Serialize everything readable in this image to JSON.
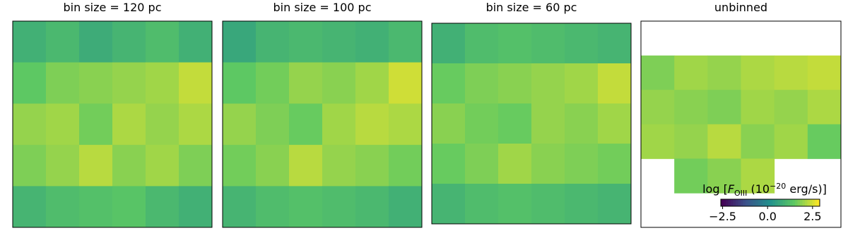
{
  "chart_data": [
    {
      "type": "heatmap",
      "title": "bin size = 120 pc",
      "clim": [
        -2.6,
        2.9
      ],
      "values": [
        [
          0.9,
          1.1,
          0.8,
          1.0,
          1.2,
          0.9
        ],
        [
          1.5,
          1.8,
          1.9,
          2.0,
          2.1,
          2.4
        ],
        [
          2.0,
          2.1,
          1.7,
          2.2,
          2.0,
          2.2
        ],
        [
          1.8,
          2.0,
          2.3,
          1.9,
          2.1,
          1.8
        ],
        [
          1.0,
          1.2,
          1.3,
          1.4,
          1.1,
          0.9
        ]
      ]
    },
    {
      "type": "heatmap",
      "title": "bin size = 100 pc",
      "clim": [
        -2.6,
        2.9
      ],
      "values": [
        [
          0.7,
          1.0,
          1.1,
          1.0,
          0.9,
          1.1
        ],
        [
          1.5,
          1.7,
          2.0,
          1.9,
          2.1,
          2.5
        ],
        [
          2.0,
          1.8,
          1.6,
          2.1,
          2.3,
          2.2
        ],
        [
          1.7,
          1.9,
          2.3,
          2.0,
          1.9,
          1.7
        ],
        [
          1.0,
          1.2,
          1.3,
          1.2,
          1.1,
          0.9
        ]
      ]
    },
    {
      "type": "heatmap",
      "title": "bin size = 60 pc",
      "clim": [
        -2.6,
        2.9
      ],
      "values": [
        [
          0.9,
          1.2,
          1.3,
          1.2,
          1.1,
          1.0
        ],
        [
          1.6,
          1.8,
          1.9,
          2.0,
          2.1,
          2.4
        ],
        [
          1.9,
          1.7,
          1.6,
          2.0,
          1.9,
          2.1
        ],
        [
          1.6,
          1.8,
          2.1,
          1.9,
          1.8,
          1.7
        ],
        [
          1.0,
          1.2,
          1.3,
          1.2,
          1.1,
          1.0
        ]
      ]
    },
    {
      "type": "heatmap",
      "title": "unbinned",
      "clim": [
        -2.6,
        2.9
      ],
      "values": [
        [
          null,
          null,
          null,
          null,
          null,
          null
        ],
        [
          1.8,
          2.1,
          2.0,
          2.2,
          2.3,
          2.4
        ],
        [
          2.0,
          1.9,
          1.8,
          2.1,
          2.0,
          2.2
        ],
        [
          2.1,
          2.0,
          2.3,
          1.9,
          2.1,
          1.6
        ],
        [
          null,
          1.7,
          1.9,
          2.2,
          null,
          null
        ],
        [
          null,
          null,
          null,
          null,
          null,
          null
        ]
      ],
      "colorbar": {
        "label": [
          "log [",
          "F",
          "OIII",
          " (10",
          "−20",
          " erg/s)]"
        ],
        "ticks": [
          {
            "value": -2.5,
            "label": "−2.5"
          },
          {
            "value": 0,
            "label": "0.0"
          },
          {
            "value": 2.5,
            "label": "2.5"
          }
        ]
      }
    }
  ]
}
